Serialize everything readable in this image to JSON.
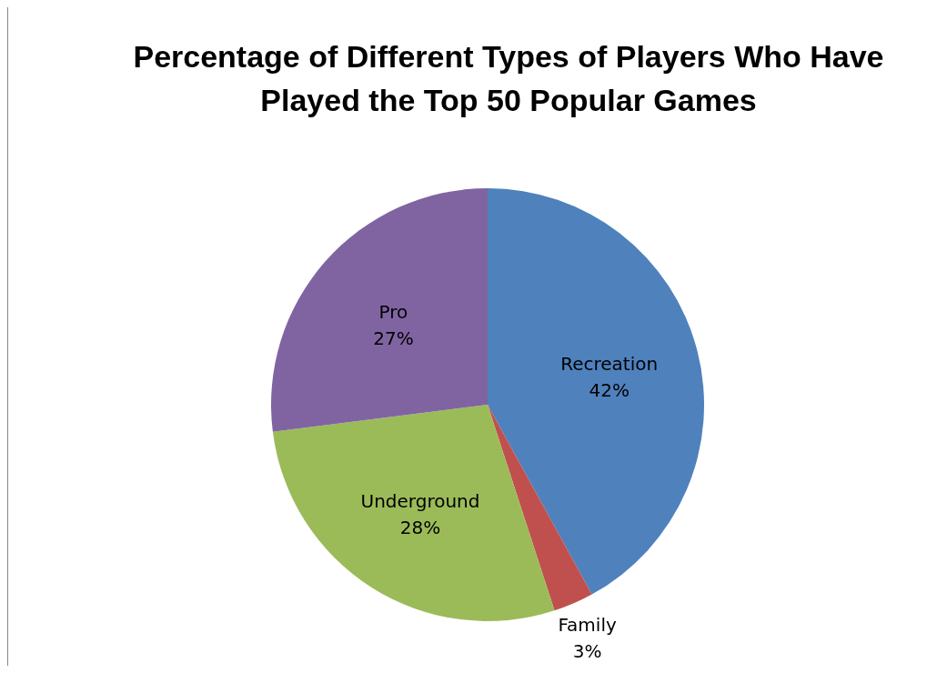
{
  "chart_data": {
    "type": "pie",
    "title": "Percentage of Different Types of Players Who Have Played the Top 50 Popular Games",
    "categories": [
      "Recreation",
      "Family",
      "Underground",
      "Pro"
    ],
    "values": [
      42,
      3,
      28,
      27
    ],
    "colors": [
      "#4f81bd",
      "#c0504d",
      "#9bbb59",
      "#8064a2"
    ],
    "value_labels": [
      "42%",
      "3%",
      "28%",
      "27%"
    ],
    "legend": false
  }
}
